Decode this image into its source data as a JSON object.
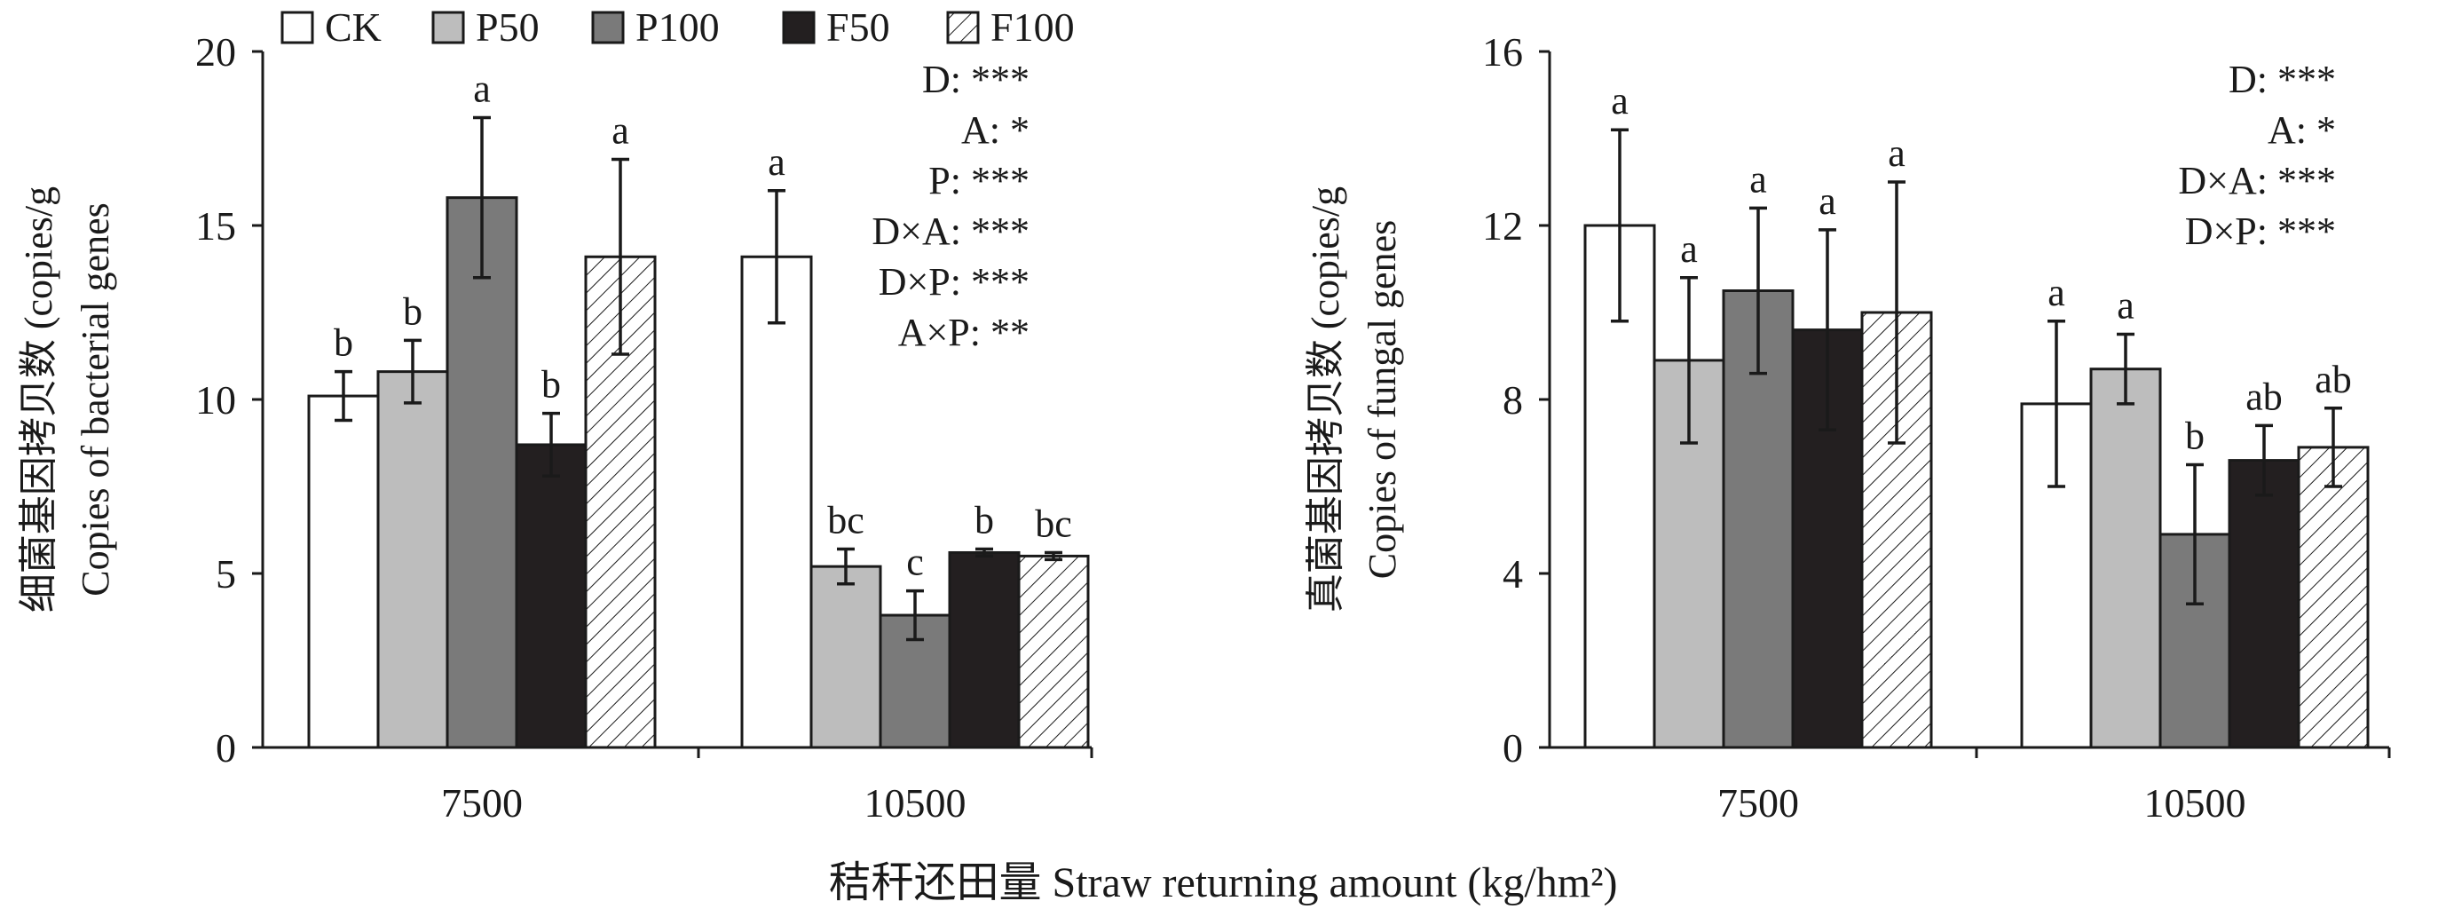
{
  "legend": [
    {
      "name": "CK",
      "fill": "#ffffff",
      "hatch": false
    },
    {
      "name": "P50",
      "fill": "#bdbdbd",
      "hatch": false
    },
    {
      "name": "P100",
      "fill": "#7a7a7a",
      "hatch": false
    },
    {
      "name": "F50",
      "fill": "#231f20",
      "hatch": false
    },
    {
      "name": "F100",
      "fill": "#ffffff",
      "hatch": true
    }
  ],
  "shared_xlabel": "秸秆还田量 Straw returning amount (kg/hm²)",
  "chart_data": [
    {
      "type": "bar",
      "categories": [
        "7500",
        "10500"
      ],
      "ylim": [
        0,
        20
      ],
      "yticks": [
        0,
        5,
        10,
        15,
        20
      ],
      "ylabel_cn": "细菌基因拷贝数 (copies/g",
      "ylabel_en": "Copies of bacterial genes",
      "series": [
        {
          "name": "CK",
          "values": [
            10.1,
            14.1
          ],
          "errors": [
            0.7,
            1.9
          ],
          "letters": [
            "b",
            "a"
          ]
        },
        {
          "name": "P50",
          "values": [
            10.8,
            5.2
          ],
          "errors": [
            0.9,
            0.5
          ],
          "letters": [
            "b",
            "bc"
          ]
        },
        {
          "name": "P100",
          "values": [
            15.8,
            3.8
          ],
          "errors": [
            2.3,
            0.7
          ],
          "letters": [
            "a",
            "c"
          ]
        },
        {
          "name": "F50",
          "values": [
            8.7,
            5.6
          ],
          "errors": [
            0.9,
            0.1
          ],
          "letters": [
            "b",
            "b"
          ]
        },
        {
          "name": "F100",
          "values": [
            14.1,
            5.5
          ],
          "errors": [
            2.8,
            0.1
          ],
          "letters": [
            "a",
            "bc"
          ]
        }
      ],
      "stats": [
        "D: ***",
        "A: *",
        "P: ***",
        "D×A: ***",
        "D×P: ***",
        "A×P: **"
      ]
    },
    {
      "type": "bar",
      "categories": [
        "7500",
        "10500"
      ],
      "ylim": [
        0,
        16
      ],
      "yticks": [
        0,
        4,
        8,
        12,
        16
      ],
      "ylabel_cn": "真菌基因拷贝数 (copies/g",
      "ylabel_en": "Copies of fungal genes",
      "series": [
        {
          "name": "CK",
          "values": [
            12.0,
            7.9
          ],
          "errors": [
            2.2,
            1.9
          ],
          "letters": [
            "a",
            "a"
          ]
        },
        {
          "name": "P50",
          "values": [
            8.9,
            8.7
          ],
          "errors": [
            1.9,
            0.8
          ],
          "letters": [
            "a",
            "a"
          ]
        },
        {
          "name": "P100",
          "values": [
            10.5,
            4.9
          ],
          "errors": [
            1.9,
            1.6
          ],
          "letters": [
            "a",
            "b"
          ]
        },
        {
          "name": "F50",
          "values": [
            9.6,
            6.6
          ],
          "errors": [
            2.3,
            0.8
          ],
          "letters": [
            "a",
            "ab"
          ]
        },
        {
          "name": "F100",
          "values": [
            10.0,
            6.9
          ],
          "errors": [
            3.0,
            0.9
          ],
          "letters": [
            "a",
            "ab"
          ]
        }
      ],
      "stats": [
        "D: ***",
        "A: *",
        "D×A: ***",
        "D×P: ***"
      ]
    }
  ]
}
